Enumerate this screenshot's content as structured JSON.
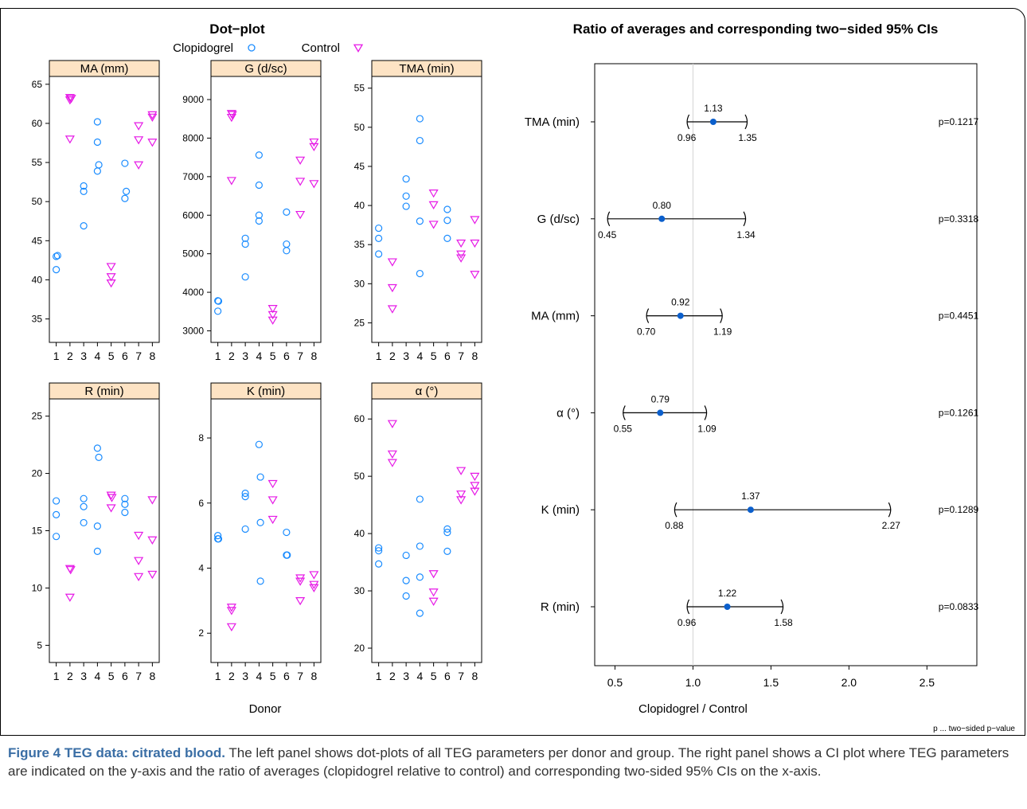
{
  "colors": {
    "clopidogrel": "#1a8cff",
    "control": "#e619e6",
    "strip": "#fde3c4",
    "point": "#0b5fcc"
  },
  "chart_data": [
    {
      "type": "scatter",
      "title": "Dot−plot",
      "xlabel": "Donor",
      "legend": {
        "position": "top",
        "entries": [
          {
            "label": "Clopidogrel",
            "marker": "circle"
          },
          {
            "label": "Control",
            "marker": "triangle-down"
          }
        ]
      },
      "x_ticks": [
        "1",
        "2",
        "3",
        "4",
        "5",
        "6",
        "7",
        "8"
      ],
      "panels": [
        {
          "strip": "MA (mm)",
          "ylim": [
            32,
            66
          ],
          "y_ticks": [
            "35",
            "40",
            "45",
            "50",
            "55",
            "60",
            "65"
          ],
          "y_tick_values": [
            35,
            40,
            45,
            50,
            55,
            60,
            65
          ],
          "series": [
            {
              "name": "Clopidogrel",
              "points": [
                [
                  1,
                  43
                ],
                [
                  1.1,
                  43.1
                ],
                [
                  1,
                  41.3
                ],
                [
                  3,
                  52
                ],
                [
                  3,
                  51.3
                ],
                [
                  3,
                  46.9
                ],
                [
                  4,
                  60.2
                ],
                [
                  4,
                  57.6
                ],
                [
                  4.1,
                  54.7
                ],
                [
                  4,
                  53.9
                ],
                [
                  6,
                  54.9
                ],
                [
                  6.1,
                  51.3
                ],
                [
                  6,
                  50.4
                ]
              ]
            },
            {
              "name": "Control",
              "points": [
                [
                  2,
                  63.3
                ],
                [
                  2.1,
                  63.2
                ],
                [
                  2,
                  63
                ],
                [
                  2,
                  58
                ],
                [
                  5,
                  41.7
                ],
                [
                  5,
                  40.4
                ],
                [
                  5,
                  39.6
                ],
                [
                  7,
                  59.7
                ],
                [
                  7,
                  57.9
                ],
                [
                  7,
                  54.7
                ],
                [
                  8,
                  61.1
                ],
                [
                  8,
                  60.8
                ],
                [
                  8,
                  57.6
                ]
              ]
            }
          ]
        },
        {
          "strip": "G (d/sc)",
          "ylim": [
            2700,
            9600
          ],
          "y_ticks": [
            "3000",
            "4000",
            "5000",
            "6000",
            "7000",
            "8000",
            "9000"
          ],
          "y_tick_values": [
            3000,
            4000,
            5000,
            6000,
            7000,
            8000,
            9000
          ],
          "series": [
            {
              "name": "Clopidogrel",
              "points": [
                [
                  1,
                  3780
                ],
                [
                  1.05,
                  3770
                ],
                [
                  1,
                  3510
                ],
                [
                  3,
                  5400
                ],
                [
                  3,
                  5250
                ],
                [
                  3,
                  4400
                ],
                [
                  4,
                  7560
                ],
                [
                  4,
                  6780
                ],
                [
                  4,
                  6000
                ],
                [
                  4,
                  5850
                ],
                [
                  6,
                  6080
                ],
                [
                  6,
                  5250
                ],
                [
                  6,
                  5080
                ]
              ]
            },
            {
              "name": "Control",
              "points": [
                [
                  2,
                  8640
                ],
                [
                  2.05,
                  8610
                ],
                [
                  2,
                  8540
                ],
                [
                  2,
                  6900
                ],
                [
                  5,
                  3580
                ],
                [
                  5,
                  3420
                ],
                [
                  5,
                  3280
                ],
                [
                  7,
                  7430
                ],
                [
                  7,
                  6880
                ],
                [
                  7,
                  6020
                ],
                [
                  8,
                  7900
                ],
                [
                  8,
                  7780
                ],
                [
                  8,
                  6820
                ]
              ]
            }
          ]
        },
        {
          "strip": "TMA (min)",
          "ylim": [
            22.5,
            56.5
          ],
          "y_ticks": [
            "25",
            "30",
            "35",
            "40",
            "45",
            "50",
            "55"
          ],
          "y_tick_values": [
            25,
            30,
            35,
            40,
            45,
            50,
            55
          ],
          "series": [
            {
              "name": "Clopidogrel",
              "points": [
                [
                  1,
                  37.1
                ],
                [
                  1,
                  35.8
                ],
                [
                  1,
                  33.8
                ],
                [
                  3,
                  43.4
                ],
                [
                  3,
                  41.2
                ],
                [
                  3,
                  39.9
                ],
                [
                  4,
                  51.1
                ],
                [
                  4,
                  48.3
                ],
                [
                  4,
                  38
                ],
                [
                  4,
                  31.3
                ],
                [
                  6,
                  39.5
                ],
                [
                  6,
                  38.1
                ],
                [
                  6,
                  35.8
                ]
              ]
            },
            {
              "name": "Control",
              "points": [
                [
                  2,
                  32.8
                ],
                [
                  2,
                  29.5
                ],
                [
                  2,
                  26.8
                ],
                [
                  5,
                  41.6
                ],
                [
                  5,
                  40.1
                ],
                [
                  5,
                  37.6
                ],
                [
                  7,
                  35.2
                ],
                [
                  7,
                  33.8
                ],
                [
                  7,
                  33.3
                ],
                [
                  8,
                  38.2
                ],
                [
                  8,
                  35.2
                ],
                [
                  8,
                  31.2
                ]
              ]
            }
          ]
        },
        {
          "strip": "R (min)",
          "ylim": [
            3.5,
            26.5
          ],
          "y_ticks": [
            "5",
            "10",
            "15",
            "20",
            "25"
          ],
          "y_tick_values": [
            5,
            10,
            15,
            20,
            25
          ],
          "series": [
            {
              "name": "Clopidogrel",
              "points": [
                [
                  1,
                  17.6
                ],
                [
                  1,
                  16.4
                ],
                [
                  1,
                  14.5
                ],
                [
                  3,
                  17.8
                ],
                [
                  3,
                  17.1
                ],
                [
                  3,
                  15.7
                ],
                [
                  4,
                  22.2
                ],
                [
                  4.1,
                  21.4
                ],
                [
                  4,
                  15.4
                ],
                [
                  4,
                  13.2
                ],
                [
                  6,
                  17.8
                ],
                [
                  6,
                  17.3
                ],
                [
                  6,
                  16.6
                ]
              ]
            },
            {
              "name": "Control",
              "points": [
                [
                  2,
                  11.7
                ],
                [
                  2.05,
                  11.6
                ],
                [
                  2,
                  9.2
                ],
                [
                  5,
                  18.1
                ],
                [
                  5.05,
                  17.9
                ],
                [
                  5,
                  17
                ],
                [
                  7,
                  14.6
                ],
                [
                  7,
                  12.4
                ],
                [
                  7,
                  11
                ],
                [
                  8,
                  17.7
                ],
                [
                  8,
                  14.2
                ],
                [
                  8,
                  11.2
                ]
              ]
            }
          ]
        },
        {
          "strip": "K (min)",
          "ylim": [
            1.1,
            9.2
          ],
          "y_ticks": [
            "2",
            "4",
            "6",
            "8"
          ],
          "y_tick_values": [
            2,
            4,
            6,
            8
          ],
          "series": [
            {
              "name": "Clopidogrel",
              "points": [
                [
                  1,
                  5
                ],
                [
                  1,
                  4.9
                ],
                [
                  1.05,
                  4.9
                ],
                [
                  3,
                  6.3
                ],
                [
                  3,
                  6.2
                ],
                [
                  3,
                  5.2
                ],
                [
                  4,
                  7.8
                ],
                [
                  4.1,
                  6.8
                ],
                [
                  4.1,
                  5.4
                ],
                [
                  4.1,
                  3.6
                ],
                [
                  6,
                  5.1
                ],
                [
                  6,
                  4.4
                ],
                [
                  6.05,
                  4.4
                ]
              ]
            },
            {
              "name": "Control",
              "points": [
                [
                  2,
                  2.8
                ],
                [
                  2,
                  2.7
                ],
                [
                  2,
                  2.2
                ],
                [
                  5,
                  6.6
                ],
                [
                  5,
                  6.1
                ],
                [
                  5,
                  5.5
                ],
                [
                  7,
                  3.7
                ],
                [
                  7,
                  3.6
                ],
                [
                  7,
                  3
                ],
                [
                  8,
                  3.8
                ],
                [
                  8,
                  3.5
                ],
                [
                  8,
                  3.4
                ]
              ]
            }
          ]
        },
        {
          "strip": "α (°)",
          "ylim": [
            17.5,
            63.5
          ],
          "y_ticks": [
            "20",
            "30",
            "40",
            "50",
            "60"
          ],
          "y_tick_values": [
            20,
            30,
            40,
            50,
            60
          ],
          "series": [
            {
              "name": "Clopidogrel",
              "points": [
                [
                  1,
                  37.5
                ],
                [
                  1,
                  37
                ],
                [
                  1,
                  34.7
                ],
                [
                  3,
                  36.2
                ],
                [
                  3,
                  31.8
                ],
                [
                  3,
                  29.1
                ],
                [
                  4,
                  46
                ],
                [
                  4,
                  37.8
                ],
                [
                  4,
                  32.4
                ],
                [
                  4,
                  26.1
                ],
                [
                  6,
                  40.8
                ],
                [
                  6,
                  40.2
                ],
                [
                  6,
                  36.9
                ]
              ]
            },
            {
              "name": "Control",
              "points": [
                [
                  2,
                  59.2
                ],
                [
                  2,
                  53.9
                ],
                [
                  2,
                  52.4
                ],
                [
                  5,
                  33
                ],
                [
                  5,
                  29.8
                ],
                [
                  5,
                  28.2
                ],
                [
                  7,
                  51
                ],
                [
                  7,
                  46.9
                ],
                [
                  7,
                  45.9
                ],
                [
                  8,
                  50
                ],
                [
                  8,
                  48.4
                ],
                [
                  8,
                  47.4
                ]
              ]
            }
          ]
        }
      ]
    },
    {
      "type": "forest",
      "title": "Ratio of averages and corresponding two−sided 95% CIs",
      "xlabel": "Clopidogrel / Control",
      "xlim": [
        0.37,
        2.82
      ],
      "x_ticks": [
        "0.5",
        "1.0",
        "1.5",
        "2.0",
        "2.5"
      ],
      "x_tick_values": [
        0.5,
        1.0,
        1.5,
        2.0,
        2.5
      ],
      "reference_line": 1.0,
      "footnote": "p ... two−sided p−value",
      "rows": [
        {
          "label": "TMA (min)",
          "estimate": 1.13,
          "lower": 0.96,
          "upper": 1.35,
          "est_label": "1.13",
          "lower_label": "0.96",
          "upper_label": "1.35",
          "p": "p=0.1217"
        },
        {
          "label": "G (d/sc)",
          "estimate": 0.8,
          "lower": 0.45,
          "upper": 1.34,
          "est_label": "0.80",
          "lower_label": "0.45",
          "upper_label": "1.34",
          "p": "p=0.3318"
        },
        {
          "label": "MA (mm)",
          "estimate": 0.92,
          "lower": 0.7,
          "upper": 1.19,
          "est_label": "0.92",
          "lower_label": "0.70",
          "upper_label": "1.19",
          "p": "p=0.4451"
        },
        {
          "label": "α (°)",
          "estimate": 0.79,
          "lower": 0.55,
          "upper": 1.09,
          "est_label": "0.79",
          "lower_label": "0.55",
          "upper_label": "1.09",
          "p": "p=0.1261"
        },
        {
          "label": "K (min)",
          "estimate": 1.37,
          "lower": 0.88,
          "upper": 2.27,
          "est_label": "1.37",
          "lower_label": "0.88",
          "upper_label": "2.27",
          "p": "p=0.1289"
        },
        {
          "label": "R (min)",
          "estimate": 1.22,
          "lower": 0.96,
          "upper": 1.58,
          "est_label": "1.22",
          "lower_label": "0.96",
          "upper_label": "1.58",
          "p": "p=0.0833"
        }
      ]
    }
  ],
  "caption": {
    "head": "Figure 4 TEG data: citrated blood.",
    "body": " The left panel shows dot-plots of all TEG parameters per donor and group. The right panel shows a CI plot where TEG parameters are indicated on the y-axis and the ratio of averages (clopidogrel relative to control) and corresponding two-sided 95% CIs on the x-axis."
  }
}
